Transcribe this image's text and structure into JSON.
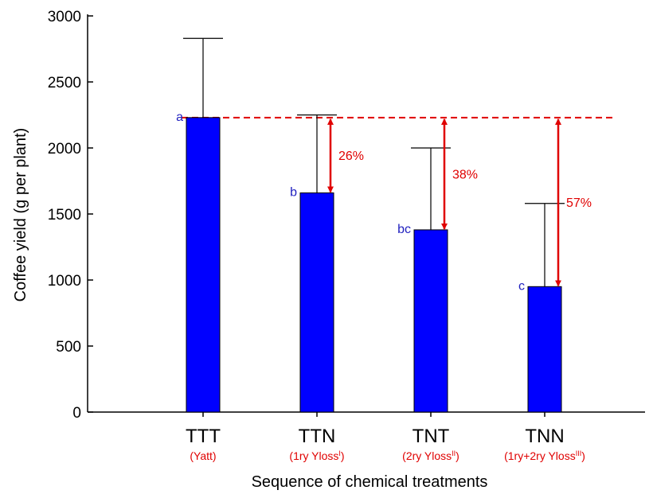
{
  "chart_data": {
    "type": "bar",
    "xlabel": "Sequence of chemical treatments",
    "ylabel": "Coffee yield (g per plant)",
    "ylim": [
      0,
      3000
    ],
    "yticks": [
      0,
      500,
      1000,
      1500,
      2000,
      2500,
      3000
    ],
    "grid": false,
    "categories": [
      "TTT",
      "TTN",
      "TNT",
      "TNN"
    ],
    "category_sublabels": [
      {
        "text": "(Yatt)",
        "sup": ""
      },
      {
        "text": "(1ry Yloss",
        "sup": "I",
        "close": ")"
      },
      {
        "text": "(2ry Yloss",
        "sup": "II",
        "close": ")"
      },
      {
        "text": "(1ry+2ry Yloss",
        "sup": "III",
        "close": ")"
      }
    ],
    "values": [
      2230,
      1660,
      1380,
      950
    ],
    "error_upper": [
      2830,
      2250,
      2000,
      1580
    ],
    "significance_letters": [
      "a",
      "b",
      "bc",
      "c"
    ],
    "reference_line": {
      "value": 2230,
      "style": "dashed"
    },
    "loss_annotations": [
      "",
      "26%",
      "38%",
      "57%"
    ],
    "colors": {
      "bar": "#0000ff",
      "letters": "#1f1fbf",
      "annotation": "#e00000",
      "axis": "#000000"
    }
  }
}
